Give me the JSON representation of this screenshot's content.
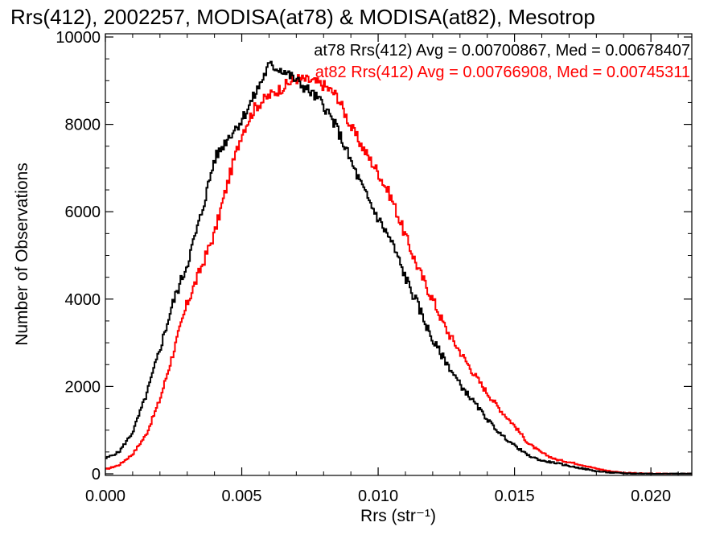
{
  "chart_data": {
    "type": "line",
    "title": "Rrs(412), 2002257, MODISA(at78) & MODISA(at82), Mesotrop",
    "xlabel": "Rrs (str⁻¹)",
    "ylabel": "Number of Observations",
    "xlim": [
      0.0,
      0.0215
    ],
    "ylim": [
      0,
      10000
    ],
    "grid": false,
    "legend_position": "top-right",
    "x_tick_labels": [
      "0.000",
      "0.005",
      "0.010",
      "0.015",
      "0.020"
    ],
    "y_tick_labels": [
      "0",
      "2000",
      "4000",
      "6000",
      "8000",
      "10000"
    ],
    "series": [
      {
        "name": "at78",
        "color": "#000000",
        "legend_text": "at78 Rrs(412) Avg = 0.00700867, Med = 0.00678407",
        "points": [
          [
            0.0,
            350
          ],
          [
            0.0005,
            500
          ],
          [
            0.001,
            950
          ],
          [
            0.0015,
            1800
          ],
          [
            0.002,
            2850
          ],
          [
            0.0025,
            3950
          ],
          [
            0.003,
            4800
          ],
          [
            0.0035,
            5900
          ],
          [
            0.004,
            7200
          ],
          [
            0.0045,
            7700
          ],
          [
            0.005,
            8100
          ],
          [
            0.0055,
            8700
          ],
          [
            0.006,
            9350
          ],
          [
            0.0065,
            9250
          ],
          [
            0.007,
            9000
          ],
          [
            0.0075,
            8750
          ],
          [
            0.008,
            8450
          ],
          [
            0.0085,
            7900
          ],
          [
            0.009,
            7150
          ],
          [
            0.0095,
            6450
          ],
          [
            0.01,
            5850
          ],
          [
            0.0105,
            5300
          ],
          [
            0.011,
            4500
          ],
          [
            0.0115,
            3800
          ],
          [
            0.012,
            3050
          ],
          [
            0.0125,
            2550
          ],
          [
            0.013,
            2050
          ],
          [
            0.0135,
            1650
          ],
          [
            0.014,
            1250
          ],
          [
            0.0145,
            900
          ],
          [
            0.015,
            650
          ],
          [
            0.0155,
            420
          ],
          [
            0.016,
            300
          ],
          [
            0.0165,
            250
          ],
          [
            0.017,
            180
          ],
          [
            0.0175,
            120
          ],
          [
            0.018,
            60
          ],
          [
            0.0185,
            30
          ],
          [
            0.019,
            10
          ],
          [
            0.0195,
            5
          ],
          [
            0.02,
            2
          ],
          [
            0.0215,
            0
          ]
        ]
      },
      {
        "name": "at82",
        "color": "#ff0000",
        "legend_text": "at82 Rrs(412) Avg = 0.00766908, Med = 0.00745311",
        "points": [
          [
            0.0,
            100
          ],
          [
            0.0005,
            200
          ],
          [
            0.001,
            450
          ],
          [
            0.0015,
            900
          ],
          [
            0.002,
            1700
          ],
          [
            0.0025,
            2800
          ],
          [
            0.003,
            3900
          ],
          [
            0.0035,
            4700
          ],
          [
            0.004,
            5500
          ],
          [
            0.0045,
            6700
          ],
          [
            0.005,
            7800
          ],
          [
            0.0055,
            8400
          ],
          [
            0.006,
            8650
          ],
          [
            0.0065,
            8850
          ],
          [
            0.007,
            9050
          ],
          [
            0.0075,
            9000
          ],
          [
            0.008,
            8900
          ],
          [
            0.0085,
            8650
          ],
          [
            0.009,
            7950
          ],
          [
            0.0095,
            7400
          ],
          [
            0.01,
            6900
          ],
          [
            0.0105,
            6300
          ],
          [
            0.011,
            5450
          ],
          [
            0.0115,
            4650
          ],
          [
            0.012,
            4000
          ],
          [
            0.0125,
            3300
          ],
          [
            0.013,
            2800
          ],
          [
            0.0135,
            2300
          ],
          [
            0.014,
            1850
          ],
          [
            0.0145,
            1450
          ],
          [
            0.015,
            1100
          ],
          [
            0.0155,
            700
          ],
          [
            0.016,
            480
          ],
          [
            0.0165,
            330
          ],
          [
            0.017,
            270
          ],
          [
            0.0175,
            200
          ],
          [
            0.018,
            120
          ],
          [
            0.0185,
            60
          ],
          [
            0.019,
            25
          ],
          [
            0.0195,
            10
          ],
          [
            0.02,
            3
          ],
          [
            0.0215,
            0
          ]
        ]
      }
    ]
  }
}
